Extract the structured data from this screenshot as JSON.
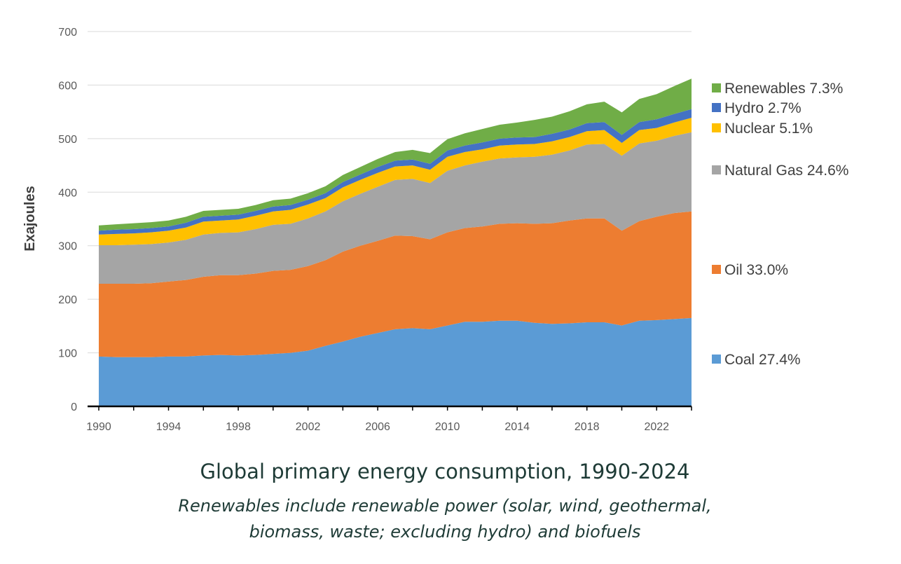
{
  "chart_data": {
    "type": "area",
    "stacked": true,
    "ylabel": "Exajoules",
    "ylim": [
      0,
      700
    ],
    "yticks": [
      0,
      100,
      200,
      300,
      400,
      500,
      600,
      700
    ],
    "xlim": [
      1990,
      2024
    ],
    "xticks": [
      1990,
      1994,
      1998,
      2002,
      2006,
      2010,
      2014,
      2018,
      2022
    ],
    "x": [
      1990,
      1991,
      1992,
      1993,
      1994,
      1995,
      1996,
      1997,
      1998,
      1999,
      2000,
      2001,
      2002,
      2003,
      2004,
      2005,
      2006,
      2007,
      2008,
      2009,
      2010,
      2011,
      2012,
      2013,
      2014,
      2015,
      2016,
      2017,
      2018,
      2019,
      2020,
      2021,
      2022,
      2023,
      2024
    ],
    "series": [
      {
        "name": "Coal",
        "share": "27.4%",
        "color": "#5b9bd5",
        "values": [
          93,
          92,
          92,
          92,
          93,
          93,
          95,
          96,
          95,
          96,
          98,
          100,
          104,
          113,
          121,
          130,
          137,
          144,
          146,
          144,
          151,
          158,
          158,
          160,
          160,
          156,
          154,
          155,
          157,
          157,
          151,
          160,
          161,
          163,
          165
        ]
      },
      {
        "name": "Oil",
        "share": "33.0%",
        "color": "#ed7d31",
        "values": [
          136,
          137,
          137,
          138,
          140,
          143,
          147,
          149,
          150,
          152,
          155,
          155,
          158,
          160,
          168,
          170,
          172,
          175,
          172,
          168,
          174,
          175,
          178,
          181,
          182,
          185,
          188,
          192,
          194,
          194,
          177,
          186,
          193,
          198,
          199
        ]
      },
      {
        "name": "Natural Gas",
        "share": "24.6%",
        "color": "#a5a5a5",
        "values": [
          72,
          72,
          73,
          73,
          73,
          75,
          79,
          79,
          80,
          83,
          86,
          86,
          89,
          91,
          94,
          97,
          101,
          104,
          107,
          105,
          115,
          117,
          121,
          122,
          123,
          125,
          128,
          131,
          138,
          139,
          140,
          145,
          142,
          144,
          148
        ]
      },
      {
        "name": "Nuclear",
        "share": "5.1%",
        "color": "#ffc000",
        "values": [
          20,
          21,
          21,
          22,
          22,
          23,
          24,
          23,
          24,
          25,
          25,
          26,
          26,
          25,
          26,
          26,
          26,
          25,
          25,
          25,
          26,
          25,
          23,
          24,
          24,
          24,
          25,
          25,
          25,
          26,
          24,
          25,
          24,
          25,
          27
        ]
      },
      {
        "name": "Hydro",
        "share": "2.7%",
        "color": "#4472c4",
        "values": [
          7,
          8,
          8,
          8,
          8,
          9,
          9,
          9,
          9,
          9,
          9,
          9,
          9,
          9,
          10,
          10,
          11,
          11,
          11,
          11,
          12,
          12,
          13,
          13,
          13,
          13,
          14,
          14,
          15,
          15,
          15,
          15,
          16,
          16,
          16
        ]
      },
      {
        "name": "Renewables",
        "share": "7.3%",
        "color": "#70ad47",
        "values": [
          10,
          10,
          11,
          11,
          11,
          11,
          11,
          11,
          11,
          11,
          12,
          12,
          12,
          13,
          13,
          14,
          15,
          16,
          18,
          20,
          21,
          23,
          25,
          26,
          28,
          32,
          32,
          34,
          35,
          38,
          42,
          43,
          47,
          52,
          57
        ]
      }
    ]
  },
  "caption": {
    "title": "Global primary energy consumption, 1990-2024",
    "subtitle_line1": "Renewables include renewable power (solar, wind, geothermal,",
    "subtitle_line2": "biomass, waste; excluding hydro) and biofuels"
  }
}
